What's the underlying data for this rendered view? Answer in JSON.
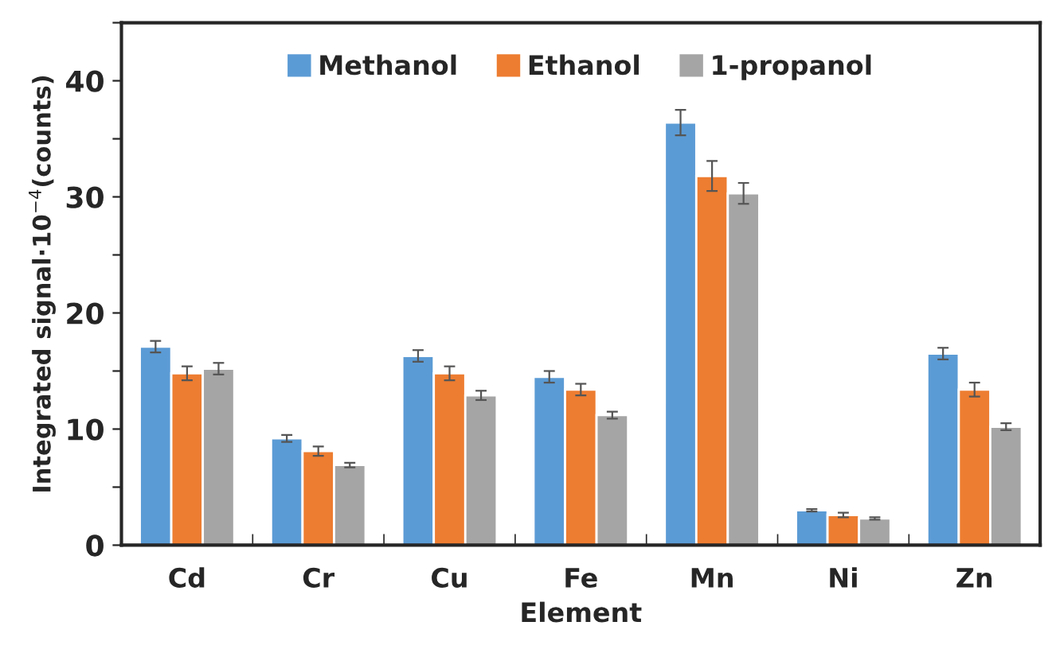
{
  "chart_data": {
    "type": "bar",
    "xlabel": "Element",
    "ylabel": "Integrated signal·10$^{−4}$(counts)",
    "categories": [
      "Cd",
      "Cr",
      "Cu",
      "Fe",
      "Mn",
      "Ni",
      "Zn"
    ],
    "series": [
      {
        "name": "Methanol",
        "color": "#5b9bd5",
        "values": [
          17.1,
          9.2,
          16.3,
          14.5,
          36.4,
          3.0,
          16.5
        ],
        "errors": [
          0.5,
          0.3,
          0.5,
          0.5,
          1.1,
          0.1,
          0.5
        ]
      },
      {
        "name": "Ethanol",
        "color": "#ed7d31",
        "values": [
          14.8,
          8.1,
          14.8,
          13.4,
          31.8,
          2.6,
          13.4
        ],
        "errors": [
          0.6,
          0.4,
          0.6,
          0.5,
          1.3,
          0.2,
          0.6
        ]
      },
      {
        "name": "1-propanol",
        "color": "#a5a5a5",
        "values": [
          15.2,
          6.9,
          12.9,
          11.2,
          30.3,
          2.3,
          10.2
        ],
        "errors": [
          0.5,
          0.2,
          0.4,
          0.3,
          0.9,
          0.1,
          0.3
        ]
      }
    ],
    "ylim": [
      0,
      45
    ],
    "yticks": [
      0,
      {
        "value": 5,
        "label": null
      },
      10,
      {
        "value": 15,
        "label": null
      },
      20,
      {
        "value": 25,
        "label": null
      },
      30,
      {
        "value": 35,
        "label": null
      },
      40,
      {
        "value": 45,
        "label": null
      }
    ],
    "grid": false,
    "legend": "top"
  }
}
